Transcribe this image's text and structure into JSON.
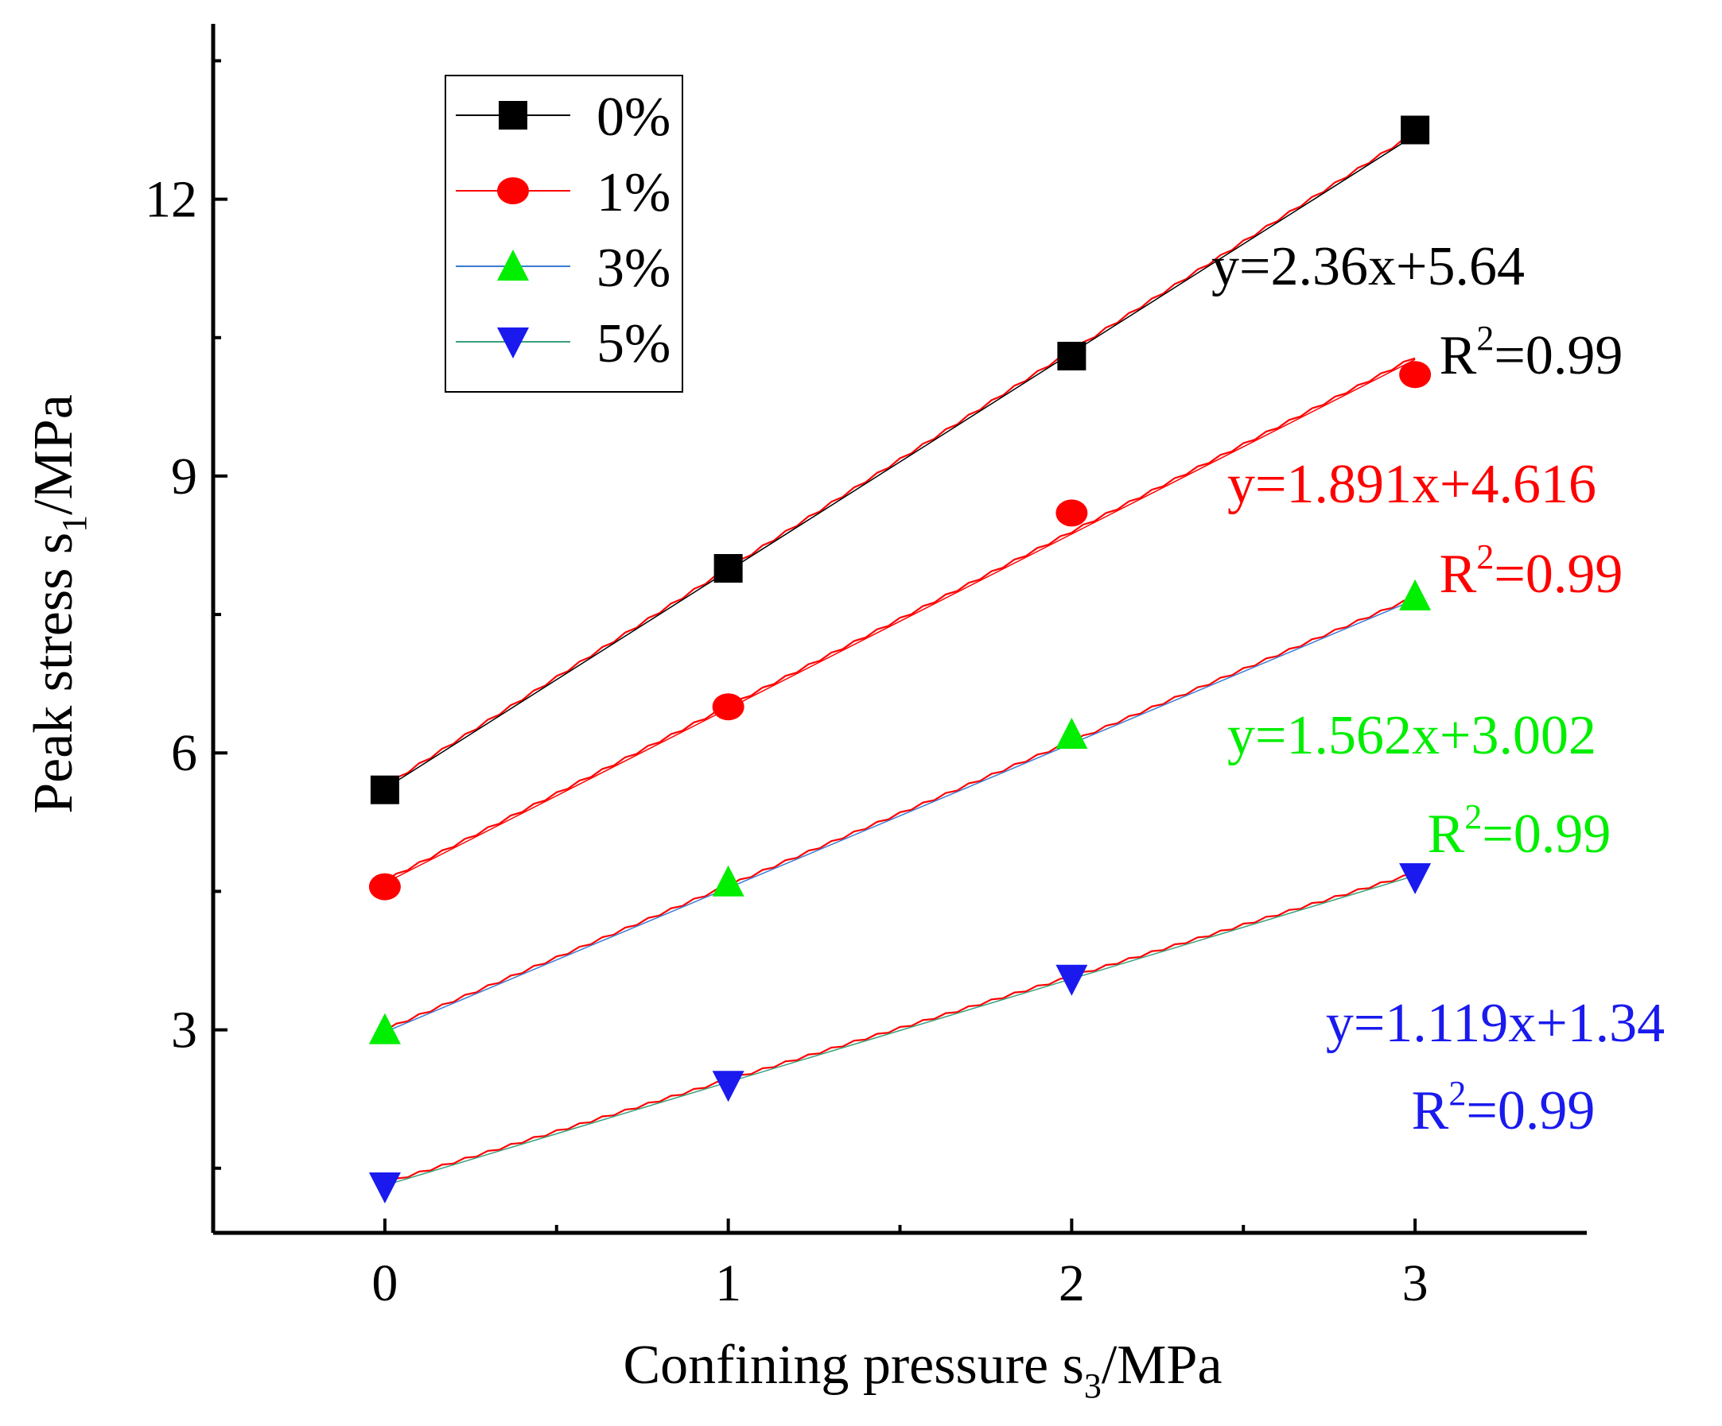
{
  "chart_data": {
    "type": "scatter",
    "xlabel": {
      "main": "Confining pressure s",
      "sub": "3",
      "unit": "/MPa"
    },
    "ylabel": {
      "main": "Peak stress s",
      "sub": "1",
      "unit": "/MPa"
    },
    "xlim": [
      -0.5,
      3.5
    ],
    "ylim": [
      0.8,
      13.9
    ],
    "xticks": [
      0,
      1,
      2,
      3
    ],
    "xticklabels": [
      "0",
      "1",
      "2",
      "3"
    ],
    "xminor": [
      0.5,
      1.5,
      2.5
    ],
    "yticks": [
      3,
      6,
      9,
      12
    ],
    "yticklabels": [
      "3",
      "6",
      "9",
      "12"
    ],
    "grid": false,
    "legend_position": "top-left",
    "x": [
      0,
      1,
      2,
      3
    ],
    "series": [
      {
        "name": "0%",
        "color": "#000000",
        "line_color": "#000000",
        "marker": "square",
        "values": [
          5.6,
          8.0,
          10.3,
          12.75
        ],
        "fit": {
          "slope": 2.36,
          "intercept": 5.64,
          "equation": "y=2.36x+5.64",
          "r2_prefix": "R",
          "r2_sup": "2",
          "r2_suffix": "=0.99"
        }
      },
      {
        "name": "1%",
        "color": "#ff0000",
        "line_color": "#ff0000",
        "marker": "circle",
        "values": [
          4.55,
          6.5,
          8.6,
          10.1
        ],
        "fit": {
          "slope": 1.891,
          "intercept": 4.616,
          "equation": "y=1.891x+4.616",
          "r2_prefix": "R",
          "r2_sup": "2",
          "r2_suffix": "=0.99"
        }
      },
      {
        "name": "3%",
        "color": "#00ee00",
        "line_color": "#3b7bd4",
        "marker": "triangle-up",
        "values": [
          3.0,
          4.6,
          6.2,
          7.7
        ],
        "fit": {
          "slope": 1.562,
          "intercept": 3.002,
          "equation": "y=1.562x+3.002",
          "r2_prefix": "R",
          "r2_sup": "2",
          "r2_suffix": "=0.99"
        }
      },
      {
        "name": "5%",
        "color": "#1a1aee",
        "line_color": "#3aa07a",
        "marker": "triangle-down",
        "values": [
          1.3,
          2.4,
          3.55,
          4.65
        ],
        "fit": {
          "slope": 1.119,
          "intercept": 1.34,
          "equation": "y=1.119x+1.34",
          "r2_prefix": "R",
          "r2_sup": "2",
          "r2_suffix": "=0.99"
        }
      }
    ]
  }
}
